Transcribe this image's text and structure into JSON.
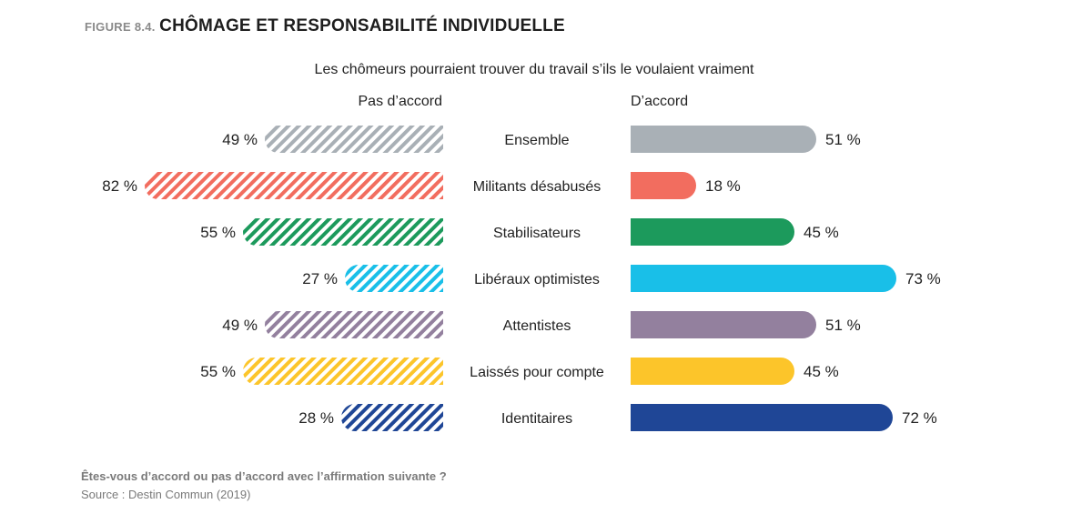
{
  "figure": {
    "number": "FIGURE 8.4.",
    "title": "CHÔMAGE ET RESPONSABILITÉ INDIVIDUELLE"
  },
  "chart_data": {
    "type": "bar",
    "title": "Les chômeurs pourraient trouver du travail s’ils le voulaient vraiment",
    "layout": "diverging-horizontal",
    "left_header": "Pas d’accord",
    "right_header": "D’accord",
    "categories": [
      "Ensemble",
      "Militants désabusés",
      "Stabilisateurs",
      "Libéraux optimistes",
      "Attentistes",
      "Laissés pour compte",
      "Identitaires"
    ],
    "series": [
      {
        "name": "Pas d’accord",
        "values": [
          49,
          82,
          55,
          27,
          49,
          55,
          28
        ],
        "labels": [
          "49 %",
          "82 %",
          "55 %",
          "27 %",
          "49 %",
          "55 %",
          "28 %"
        ],
        "style": "hatched"
      },
      {
        "name": "D’accord",
        "values": [
          51,
          18,
          45,
          73,
          51,
          45,
          72
        ],
        "labels": [
          "51 %",
          "18 %",
          "45 %",
          "73 %",
          "51 %",
          "45 %",
          "72 %"
        ],
        "style": "solid"
      }
    ],
    "colors": [
      "#a9b0b6",
      "#f26d5f",
      "#1c9a5c",
      "#19bfe8",
      "#93809e",
      "#fcc52a",
      "#1f4696"
    ],
    "xlim": [
      0,
      100
    ],
    "grid": false
  },
  "footer": {
    "question": "Êtes-vous d’accord ou pas d’accord avec l’affirmation suivante ?",
    "source": "Source : Destin Commun (2019)"
  }
}
